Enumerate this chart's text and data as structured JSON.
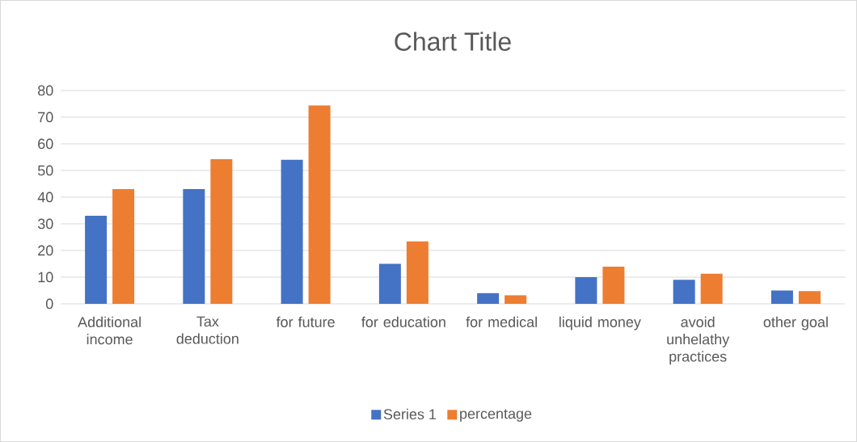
{
  "chart_data": {
    "type": "bar",
    "title": "Chart Title",
    "categories": [
      "Additional income",
      "Tax deduction",
      "for future",
      "for education",
      "for medical",
      "liquid money",
      "avoid unhelathy practices",
      "other goal"
    ],
    "series": [
      {
        "name": "Series 1",
        "color": "#4472c4",
        "values": [
          33,
          43,
          54,
          15,
          4,
          10,
          9,
          5
        ]
      },
      {
        "name": "percentage",
        "color": "#ed7d31",
        "values": [
          43,
          54.2,
          74.4,
          23.4,
          3.2,
          13.9,
          11.3,
          4.8
        ]
      }
    ],
    "ylim": [
      0,
      80
    ],
    "yticks": [
      0,
      10,
      20,
      30,
      40,
      50,
      60,
      70,
      80
    ],
    "grid": "y",
    "legend": "bottom"
  }
}
